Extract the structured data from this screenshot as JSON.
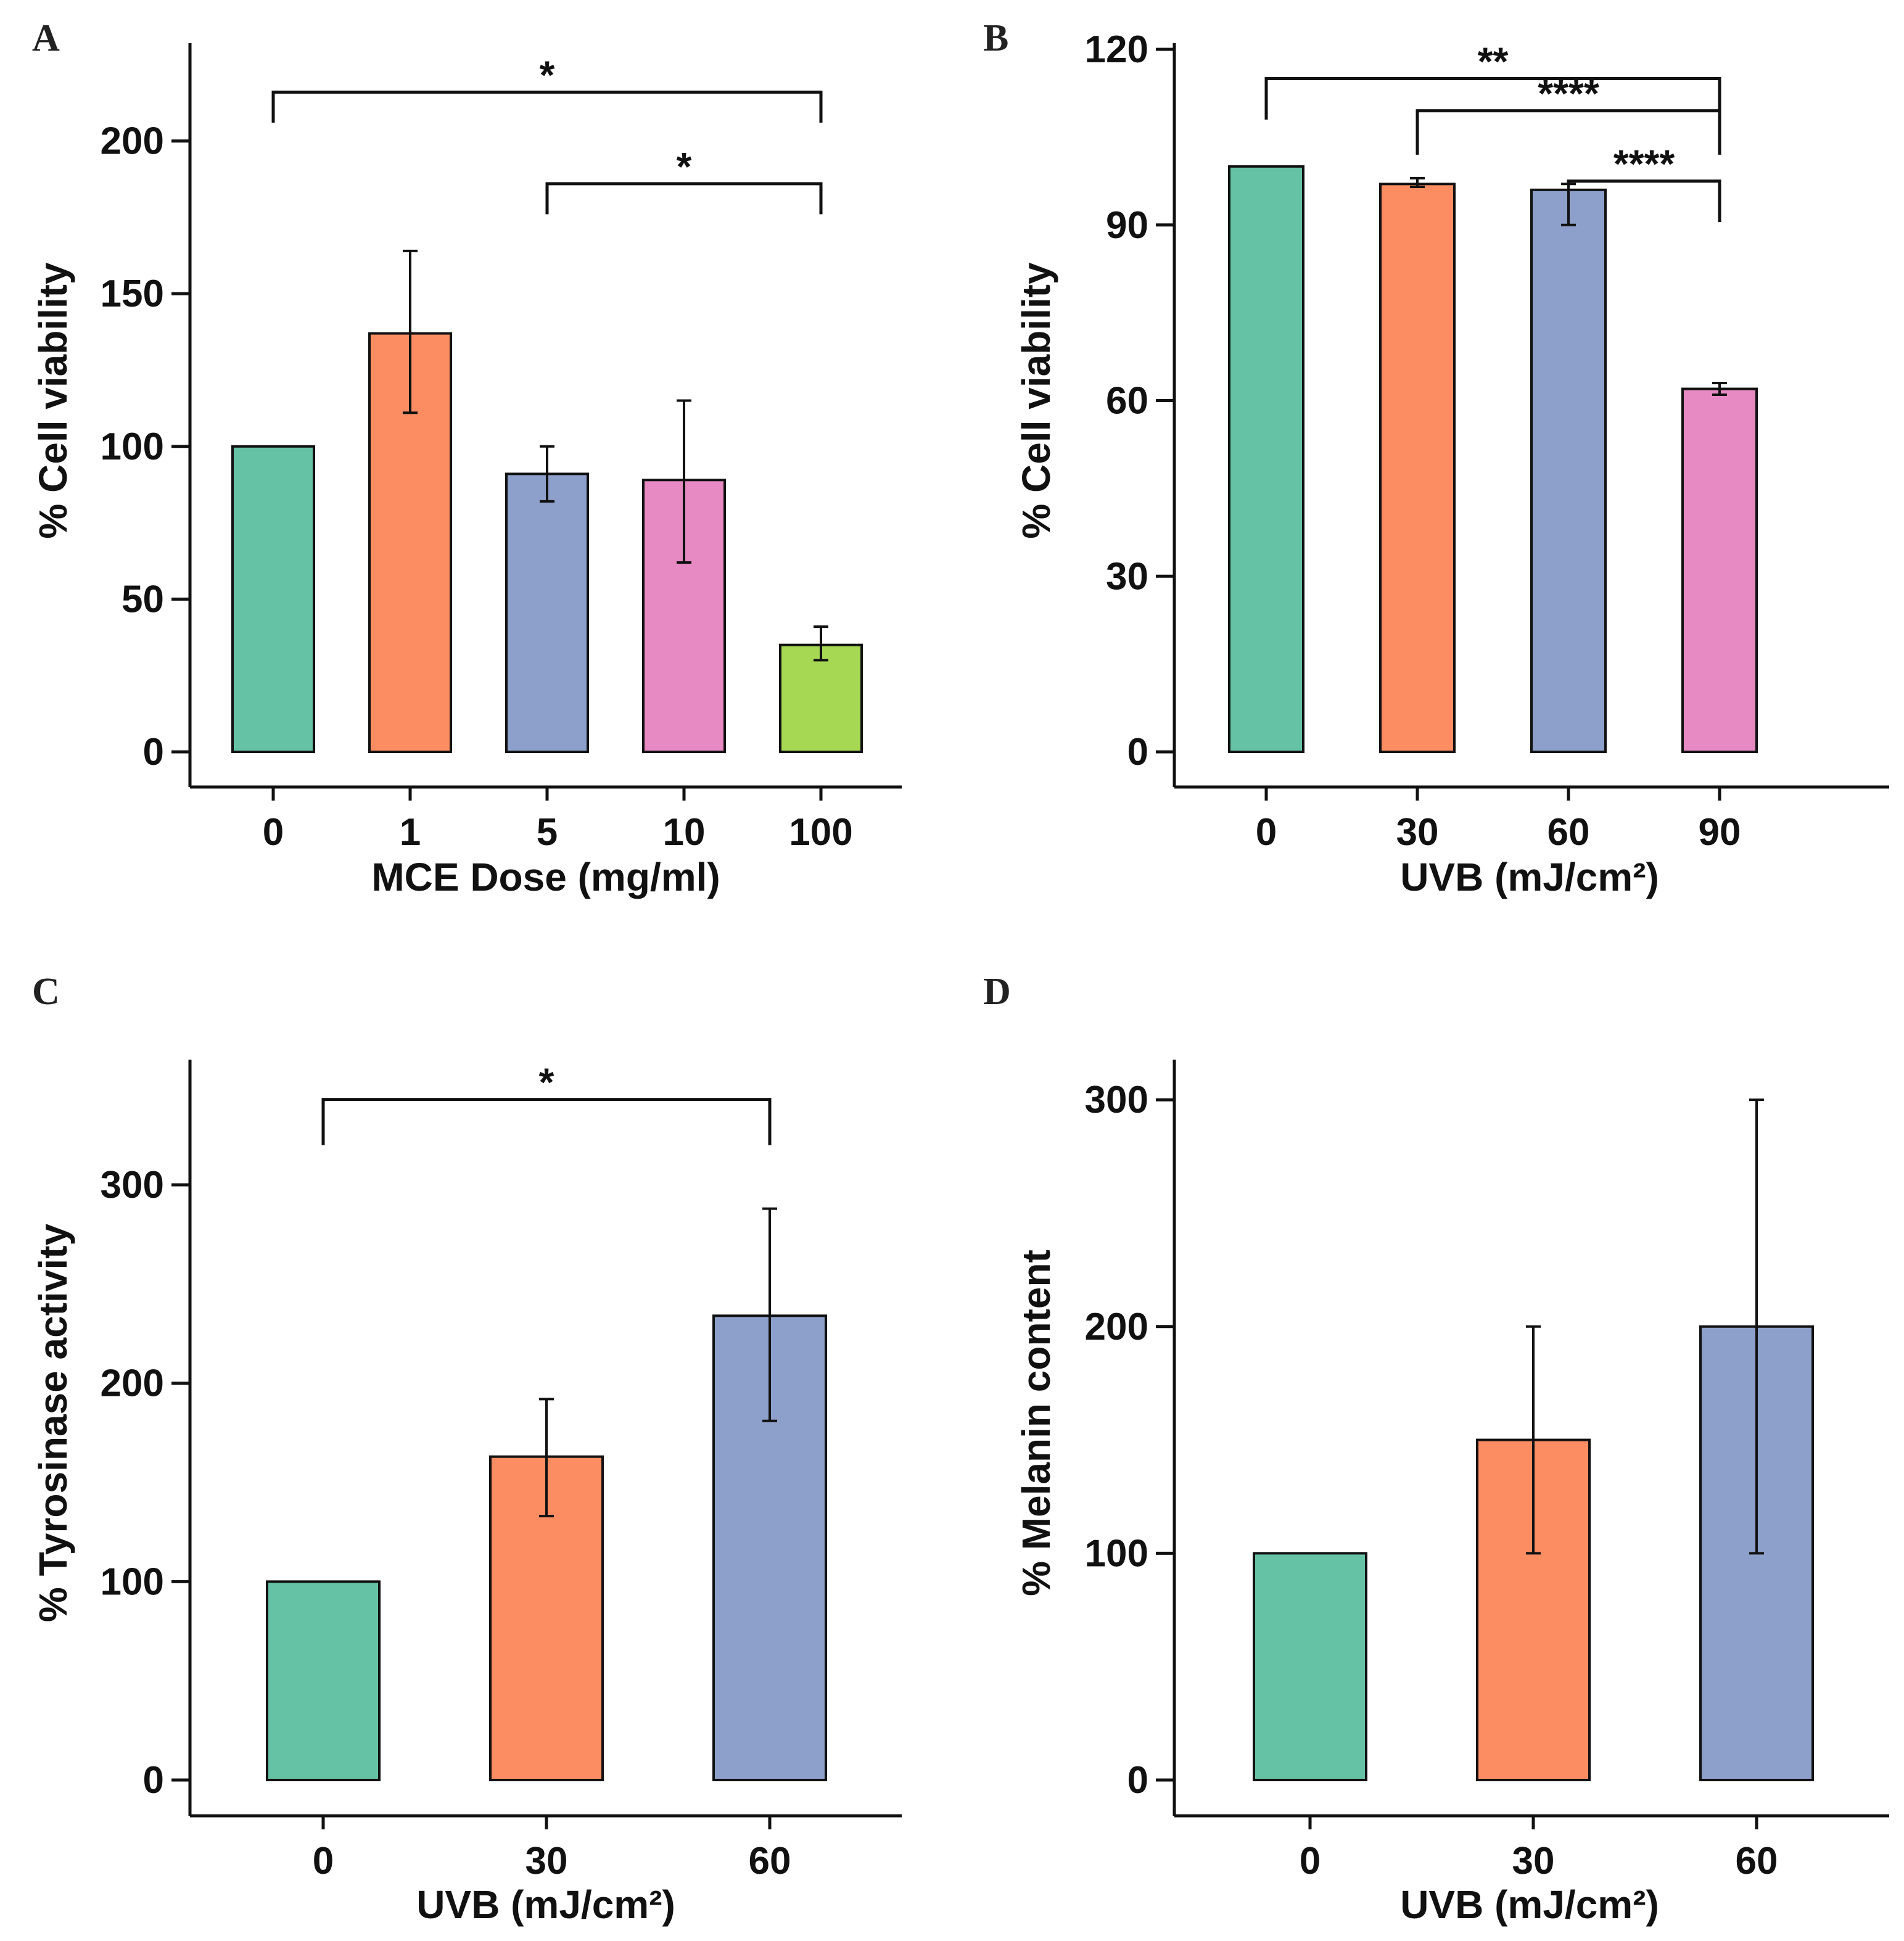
{
  "figure": {
    "panel_letters": [
      "A",
      "B",
      "C",
      "D"
    ]
  },
  "chart_data": [
    {
      "panel": "A",
      "type": "bar",
      "title": "",
      "xlabel": "MCE Dose (mg/ml)",
      "ylabel": "% Cell viability",
      "ylim": [
        0,
        230
      ],
      "yticks": [
        0,
        50,
        100,
        150,
        200
      ],
      "grid": false,
      "categories": [
        "0",
        "1",
        "5",
        "10",
        "100"
      ],
      "values": [
        100,
        137,
        91,
        89,
        35
      ],
      "error": [
        {
          "low": 100,
          "high": 100
        },
        {
          "low": 111,
          "high": 164
        },
        {
          "low": 82,
          "high": 100
        },
        {
          "low": 62,
          "high": 115
        },
        {
          "low": 30,
          "high": 41
        }
      ],
      "colors": [
        "#66c2a5",
        "#fc8d62",
        "#8da0cb",
        "#e78ac3",
        "#a6d854"
      ],
      "significance": [
        {
          "from": "0",
          "to": "100",
          "label": "*",
          "level": 216,
          "drop_from": 206,
          "drop_to": 206
        },
        {
          "from": "5",
          "to": "100",
          "label": "*",
          "level": 186,
          "drop_from": 176,
          "drop_to": 176
        }
      ]
    },
    {
      "panel": "B",
      "type": "bar",
      "title": "",
      "xlabel": "UVB (mJ/cm²)",
      "ylabel": "% Cell viability",
      "ylim": [
        0,
        120
      ],
      "yticks": [
        0,
        30,
        60,
        90,
        120
      ],
      "grid": false,
      "categories": [
        "0",
        "30",
        "60",
        "90"
      ],
      "values": [
        100,
        97,
        96,
        62
      ],
      "error": [
        {
          "low": 100,
          "high": 100
        },
        {
          "low": 96.5,
          "high": 98
        },
        {
          "low": 90,
          "high": 97
        },
        {
          "low": 61,
          "high": 63
        }
      ],
      "colors": [
        "#66c2a5",
        "#fc8d62",
        "#8da0cb",
        "#e78ac3"
      ],
      "significance": [
        {
          "from": "0",
          "to": "90",
          "label": "**",
          "level": 115,
          "drop_from": 108,
          "drop_to": 108
        },
        {
          "from": "30",
          "to": "90",
          "label": "****",
          "level": 109.5,
          "drop_from": 102,
          "drop_to": 102
        },
        {
          "from": "60",
          "to": "90",
          "label": "****",
          "level": 97.5,
          "drop_from": 97,
          "drop_to": 90.5
        }
      ]
    },
    {
      "panel": "C",
      "type": "bar",
      "title": "",
      "xlabel": "UVB (mJ/cm²)",
      "ylabel": "% Tyrosinase activity",
      "ylim": [
        0,
        360
      ],
      "yticks": [
        0,
        100,
        200,
        300
      ],
      "grid": false,
      "categories": [
        "0",
        "30",
        "60"
      ],
      "values": [
        100,
        163,
        234
      ],
      "error": [
        {
          "low": 100,
          "high": 100
        },
        {
          "low": 133,
          "high": 192
        },
        {
          "low": 181,
          "high": 288
        }
      ],
      "colors": [
        "#66c2a5",
        "#fc8d62",
        "#8da0cb"
      ],
      "significance": [
        {
          "from": "0",
          "to": "60",
          "label": "*",
          "level": 343,
          "drop_from": 320,
          "drop_to": 320
        }
      ]
    },
    {
      "panel": "D",
      "type": "bar",
      "title": "",
      "xlabel": "UVB (mJ/cm²)",
      "ylabel": "% Melanin content",
      "ylim": [
        0,
        315
      ],
      "yticks": [
        0,
        100,
        200,
        300
      ],
      "grid": false,
      "categories": [
        "0",
        "30",
        "60"
      ],
      "values": [
        100,
        150,
        200
      ],
      "error": [
        {
          "low": 100,
          "high": 100
        },
        {
          "low": 100,
          "high": 200
        },
        {
          "low": 100,
          "high": 300
        }
      ],
      "colors": [
        "#66c2a5",
        "#fc8d62",
        "#8da0cb"
      ],
      "significance": []
    }
  ]
}
